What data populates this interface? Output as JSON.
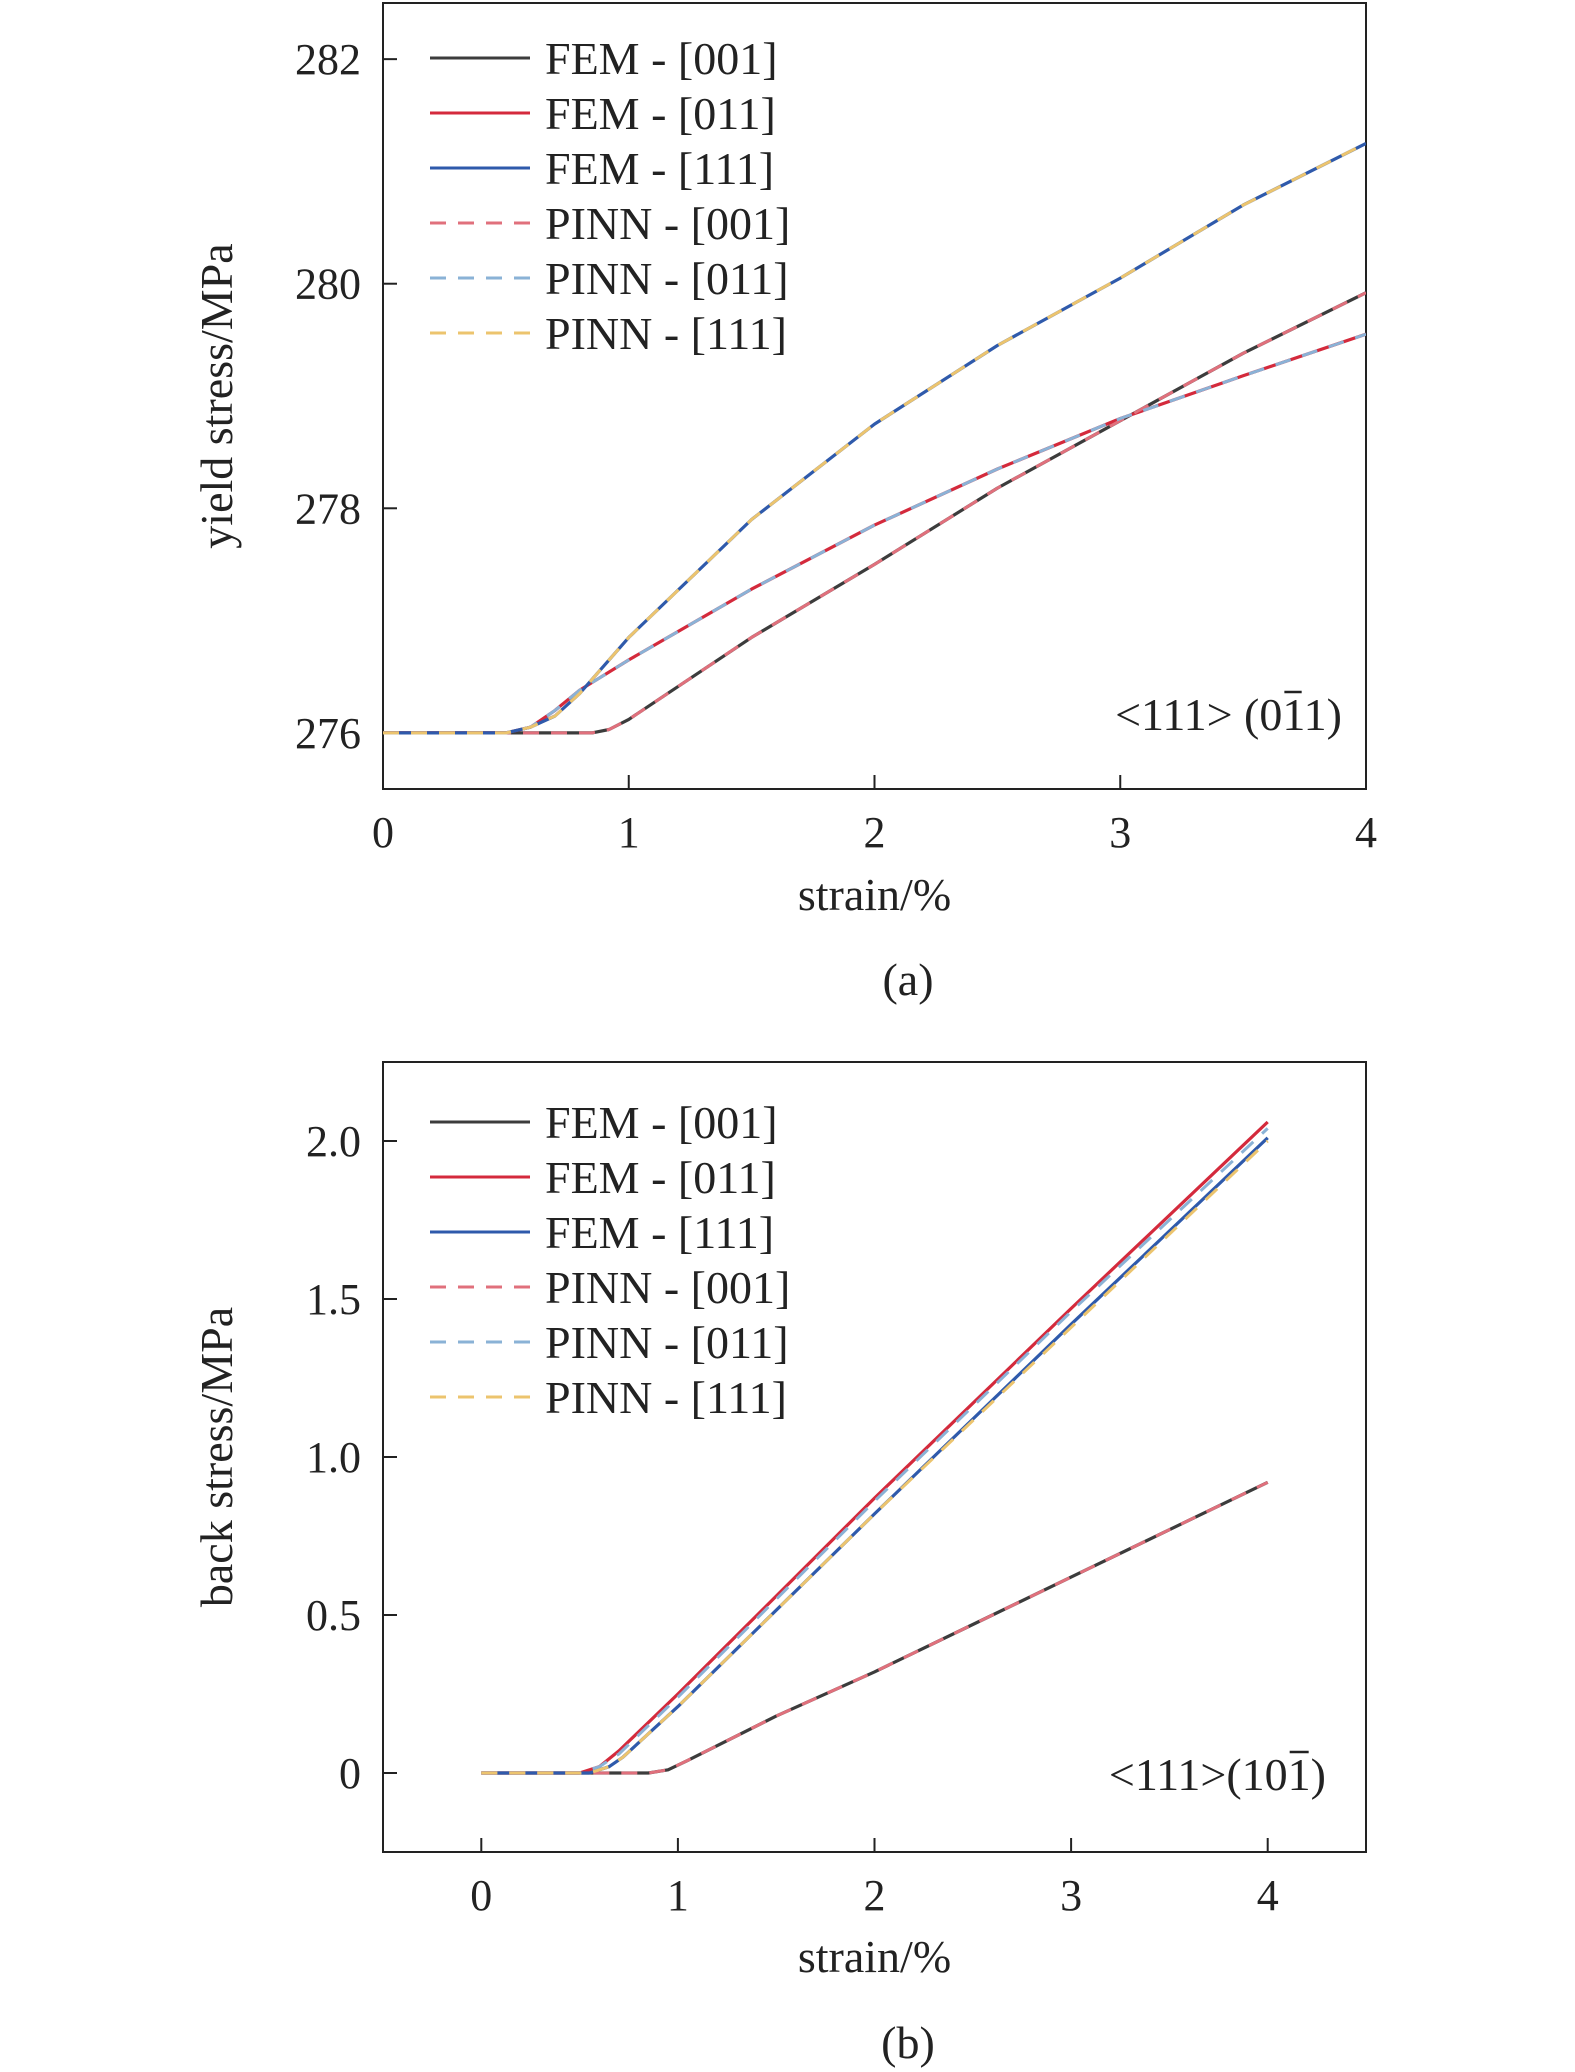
{
  "figure": {
    "panel_labels": [
      "(a)",
      "(b)"
    ]
  },
  "chart_data": [
    {
      "type": "line",
      "panel": "(a)",
      "xlabel": "strain/%",
      "ylabel": "yield stress/MPa",
      "xlim": [
        0,
        4
      ],
      "ylim": [
        275.5,
        282.5
      ],
      "xticks": [
        0,
        1,
        2,
        3,
        4
      ],
      "yticks": [
        276,
        278,
        280,
        282
      ],
      "grid": false,
      "legend_position": "top-left",
      "annotation": {
        "prefix": "<111> (0",
        "overbar": "1",
        "suffix": "1)"
      },
      "series": [
        {
          "name": "FEM - [001]",
          "color": "#3c3c3c",
          "style": "solid",
          "x": [
            0,
            0.5,
            0.85,
            0.92,
            1.0,
            1.5,
            2.0,
            2.5,
            3.0,
            3.5,
            4.0
          ],
          "y": [
            276.0,
            276.0,
            276.0,
            276.03,
            276.12,
            276.85,
            277.5,
            278.18,
            278.78,
            279.38,
            279.92
          ]
        },
        {
          "name": "FEM - [011]",
          "color": "#d42a3c",
          "style": "solid",
          "x": [
            0,
            0.5,
            0.6,
            0.7,
            0.8,
            1.0,
            1.5,
            2.0,
            2.5,
            3.0,
            3.5,
            4.0
          ],
          "y": [
            276.0,
            276.0,
            276.05,
            276.2,
            276.38,
            276.65,
            277.28,
            277.85,
            278.35,
            278.8,
            279.18,
            279.55
          ]
        },
        {
          "name": "FEM - [111]",
          "color": "#2f5aab",
          "style": "solid",
          "x": [
            0,
            0.5,
            0.6,
            0.7,
            0.8,
            1.0,
            1.5,
            2.0,
            2.5,
            3.0,
            3.5,
            4.0
          ],
          "y": [
            276.0,
            276.0,
            276.05,
            276.15,
            276.35,
            276.85,
            277.9,
            278.75,
            279.45,
            280.05,
            280.7,
            281.25
          ]
        },
        {
          "name": "PINN - [001]",
          "color": "#e0707c",
          "style": "dashed",
          "x": [
            0,
            0.5,
            0.85,
            0.92,
            1.0,
            1.5,
            2.0,
            2.5,
            3.0,
            3.5,
            4.0
          ],
          "y": [
            276.0,
            276.0,
            276.0,
            276.03,
            276.12,
            276.85,
            277.5,
            278.18,
            278.78,
            279.38,
            279.92
          ]
        },
        {
          "name": "PINN - [011]",
          "color": "#8ab2d6",
          "style": "dashed",
          "x": [
            0,
            0.5,
            0.6,
            0.7,
            0.8,
            1.0,
            1.5,
            2.0,
            2.5,
            3.0,
            3.5,
            4.0
          ],
          "y": [
            276.0,
            276.0,
            276.05,
            276.2,
            276.38,
            276.65,
            277.28,
            277.85,
            278.35,
            278.8,
            279.18,
            279.55
          ]
        },
        {
          "name": "PINN - [111]",
          "color": "#ecc46e",
          "style": "dashed",
          "x": [
            0,
            0.5,
            0.6,
            0.7,
            0.8,
            1.0,
            1.5,
            2.0,
            2.5,
            3.0,
            3.5,
            4.0
          ],
          "y": [
            276.0,
            276.0,
            276.05,
            276.15,
            276.35,
            276.85,
            277.9,
            278.75,
            279.45,
            280.05,
            280.7,
            281.25
          ]
        }
      ]
    },
    {
      "type": "line",
      "panel": "(b)",
      "xlabel": "strain/%",
      "ylabel": "back stress/MPa",
      "xlim": [
        -0.5,
        4.5
      ],
      "ylim": [
        -0.25,
        2.25
      ],
      "xticks": [
        0,
        1,
        2,
        3,
        4
      ],
      "yticks": [
        0,
        0.5,
        1.0,
        1.5,
        2.0
      ],
      "ytick_labels": [
        "0",
        "0.5",
        "1.0",
        "1.5",
        "2.0"
      ],
      "grid": false,
      "legend_position": "top-left",
      "annotation": {
        "prefix": "<111>(10",
        "overbar": "1",
        "suffix": ")"
      },
      "series": [
        {
          "name": "FEM - [001]",
          "color": "#3c3c3c",
          "style": "solid",
          "x": [
            0,
            0.5,
            0.85,
            0.95,
            1.05,
            1.5,
            2.0,
            2.5,
            3.0,
            3.5,
            4.0
          ],
          "y": [
            0,
            0,
            0,
            0.01,
            0.04,
            0.18,
            0.32,
            0.47,
            0.62,
            0.77,
            0.92
          ]
        },
        {
          "name": "FEM - [011]",
          "color": "#d42a3c",
          "style": "solid",
          "x": [
            0,
            0.5,
            0.6,
            0.7,
            1.0,
            2.0,
            3.0,
            4.0
          ],
          "y": [
            0,
            0,
            0.02,
            0.07,
            0.25,
            0.87,
            1.47,
            2.06
          ]
        },
        {
          "name": "FEM - [111]",
          "color": "#2f5aab",
          "style": "solid",
          "x": [
            0,
            0.55,
            0.65,
            0.72,
            1.0,
            2.0,
            3.0,
            4.0
          ],
          "y": [
            0,
            0,
            0.02,
            0.05,
            0.21,
            0.82,
            1.42,
            2.01
          ]
        },
        {
          "name": "PINN - [001]",
          "color": "#e0707c",
          "style": "dashed",
          "x": [
            0,
            0.5,
            0.85,
            0.95,
            1.05,
            1.5,
            2.0,
            2.5,
            3.0,
            3.5,
            4.0
          ],
          "y": [
            0,
            0,
            0,
            0.01,
            0.04,
            0.18,
            0.32,
            0.47,
            0.62,
            0.77,
            0.92
          ]
        },
        {
          "name": "PINN - [011]",
          "color": "#8ab2d6",
          "style": "dashed",
          "x": [
            0,
            0.5,
            0.6,
            0.7,
            1.0,
            2.0,
            3.0,
            4.0
          ],
          "y": [
            0,
            0,
            0.02,
            0.06,
            0.24,
            0.86,
            1.46,
            2.04
          ]
        },
        {
          "name": "PINN - [111]",
          "color": "#ecc46e",
          "style": "dashed",
          "x": [
            0,
            0.55,
            0.65,
            0.72,
            1.0,
            2.0,
            3.0,
            4.0
          ],
          "y": [
            0,
            0,
            0.02,
            0.05,
            0.21,
            0.82,
            1.41,
            2.0
          ]
        }
      ]
    }
  ]
}
